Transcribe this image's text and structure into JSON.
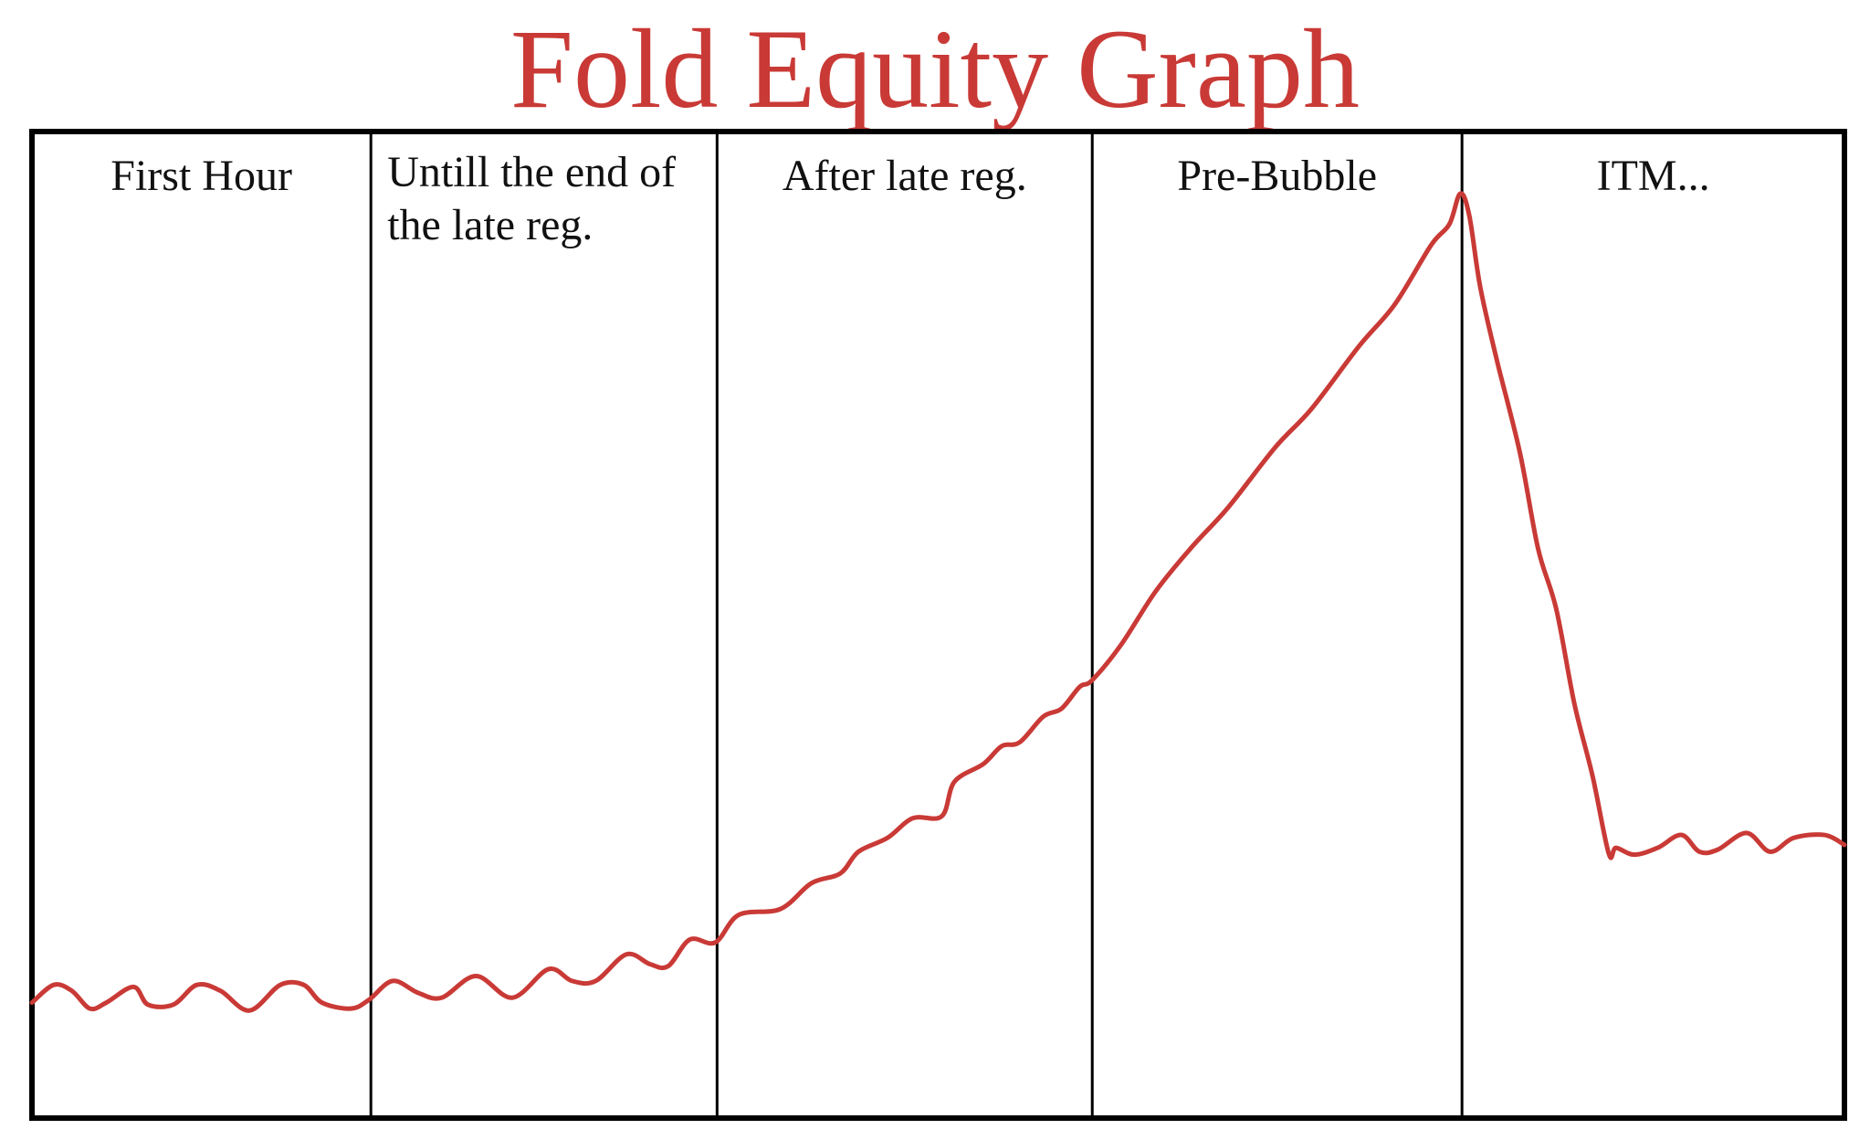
{
  "chart_data": {
    "type": "line",
    "title": "Fold Equity Graph",
    "xlabel": "",
    "ylabel": "",
    "xlim": [
      0,
      100
    ],
    "ylim": [
      0,
      100
    ],
    "grid": false,
    "line_color": "#c93a36",
    "title_color": "#c93a36",
    "phases": [
      {
        "label": "First Hour",
        "start": 0,
        "end": 18.7
      },
      {
        "label": "Untill the end of\nthe late reg.",
        "start": 18.7,
        "end": 37.8
      },
      {
        "label": "After late reg.",
        "start": 37.8,
        "end": 58.5
      },
      {
        "label": "Pre-Bubble",
        "start": 58.5,
        "end": 78.9
      },
      {
        "label": "ITM...",
        "start": 78.9,
        "end": 100
      }
    ],
    "series": [
      {
        "points": [
          [
            0,
            11.7
          ],
          [
            1.2,
            13.5
          ],
          [
            2.2,
            12.9
          ],
          [
            3.2,
            11.1
          ],
          [
            4.1,
            11.7
          ],
          [
            5.6,
            13.3
          ],
          [
            6.4,
            11.5
          ],
          [
            7.8,
            11.5
          ],
          [
            9.1,
            13.5
          ],
          [
            10.4,
            12.9
          ],
          [
            12.0,
            10.9
          ],
          [
            13.7,
            13.5
          ],
          [
            15.0,
            13.5
          ],
          [
            16.0,
            11.7
          ],
          [
            17.6,
            11.1
          ],
          [
            18.6,
            12.0
          ],
          [
            19.9,
            13.9
          ],
          [
            21.3,
            12.7
          ],
          [
            22.6,
            12.2
          ],
          [
            24.5,
            14.4
          ],
          [
            26.5,
            12.2
          ],
          [
            28.5,
            15.1
          ],
          [
            29.8,
            13.9
          ],
          [
            31.1,
            13.9
          ],
          [
            32.8,
            16.6
          ],
          [
            34.1,
            15.6
          ],
          [
            35.1,
            15.4
          ],
          [
            36.3,
            18.1
          ],
          [
            37.7,
            17.8
          ],
          [
            39.0,
            20.6
          ],
          [
            41.3,
            21.2
          ],
          [
            43.0,
            23.8
          ],
          [
            44.6,
            24.8
          ],
          [
            45.6,
            27.0
          ],
          [
            47.2,
            28.4
          ],
          [
            48.6,
            30.4
          ],
          [
            50.2,
            30.6
          ],
          [
            50.9,
            34.1
          ],
          [
            52.5,
            35.9
          ],
          [
            53.5,
            37.7
          ],
          [
            54.5,
            38.1
          ],
          [
            55.8,
            40.7
          ],
          [
            56.8,
            41.5
          ],
          [
            57.8,
            43.7
          ],
          [
            58.5,
            44.4
          ],
          [
            60.1,
            48.0
          ],
          [
            62.0,
            53.4
          ],
          [
            64.0,
            57.9
          ],
          [
            66.0,
            61.9
          ],
          [
            68.6,
            68.0
          ],
          [
            70.6,
            71.9
          ],
          [
            73.2,
            78.2
          ],
          [
            75.2,
            82.5
          ],
          [
            77.2,
            88.5
          ],
          [
            78.2,
            90.6
          ],
          [
            78.8,
            93.7
          ],
          [
            79.3,
            91.5
          ],
          [
            79.9,
            84.3
          ],
          [
            80.8,
            77.0
          ],
          [
            82.1,
            67.4
          ],
          [
            83.1,
            57.7
          ],
          [
            84.1,
            51.6
          ],
          [
            85.1,
            42.0
          ],
          [
            86.1,
            34.7
          ],
          [
            87.0,
            26.8
          ],
          [
            87.4,
            27.4
          ],
          [
            88.4,
            26.7
          ],
          [
            89.7,
            27.4
          ],
          [
            91.0,
            28.7
          ],
          [
            92.0,
            27.0
          ],
          [
            93.0,
            27.2
          ],
          [
            94.6,
            28.9
          ],
          [
            95.9,
            27.0
          ],
          [
            97.2,
            28.4
          ],
          [
            98.9,
            28.7
          ],
          [
            100,
            27.7
          ]
        ]
      }
    ]
  }
}
